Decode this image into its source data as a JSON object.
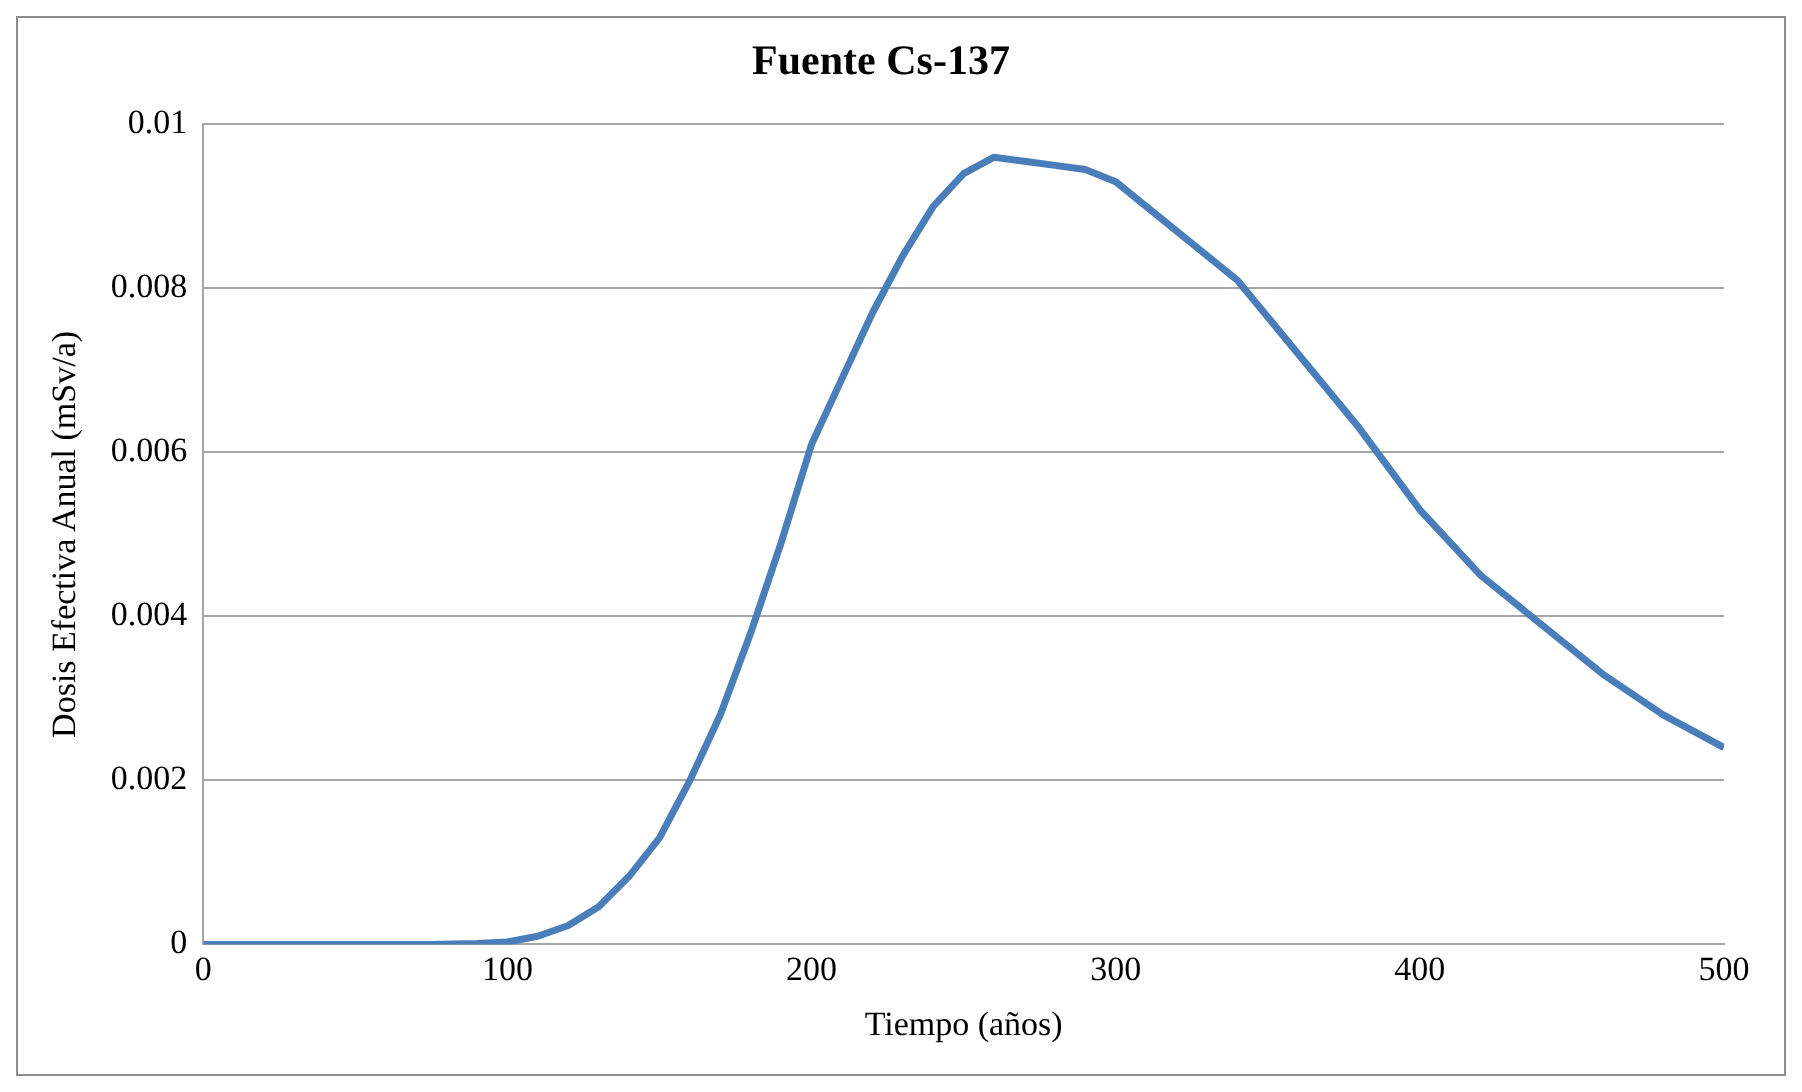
{
  "chart_data": {
    "type": "line",
    "title": "Fuente Cs-137",
    "xlabel": "Tiempo (años)",
    "ylabel": "Dosis Efectiva Anual (mSv/a)",
    "x": [
      0,
      25,
      50,
      75,
      90,
      100,
      110,
      120,
      130,
      140,
      150,
      160,
      170,
      180,
      190,
      200,
      210,
      220,
      230,
      240,
      250,
      260,
      270,
      280,
      290,
      300,
      320,
      340,
      360,
      380,
      400,
      420,
      440,
      460,
      480,
      500
    ],
    "series": [
      {
        "color": "#4a7ebb",
        "values": [
          0,
          0,
          0,
          0,
          1e-05,
          3e-05,
          0.0001,
          0.00023,
          0.00046,
          0.00083,
          0.0013,
          0.002,
          0.0028,
          0.0038,
          0.0049,
          0.0061,
          0.0069,
          0.0077,
          0.0084,
          0.009,
          0.0094,
          0.0096,
          0.00955,
          0.0095,
          0.00945,
          0.0093,
          0.0087,
          0.0081,
          0.0072,
          0.0063,
          0.0053,
          0.0045,
          0.0039,
          0.0033,
          0.0028,
          0.0024
        ]
      }
    ],
    "xlim": [
      0,
      500
    ],
    "xticks": [
      0,
      100,
      200,
      300,
      400,
      500
    ],
    "ylim": [
      0,
      0.01
    ],
    "yticks": [
      0,
      0.002,
      0.004,
      0.006,
      0.008,
      0.01
    ],
    "grid": "y",
    "legend": false,
    "marker": "none",
    "line_style": "solid"
  }
}
